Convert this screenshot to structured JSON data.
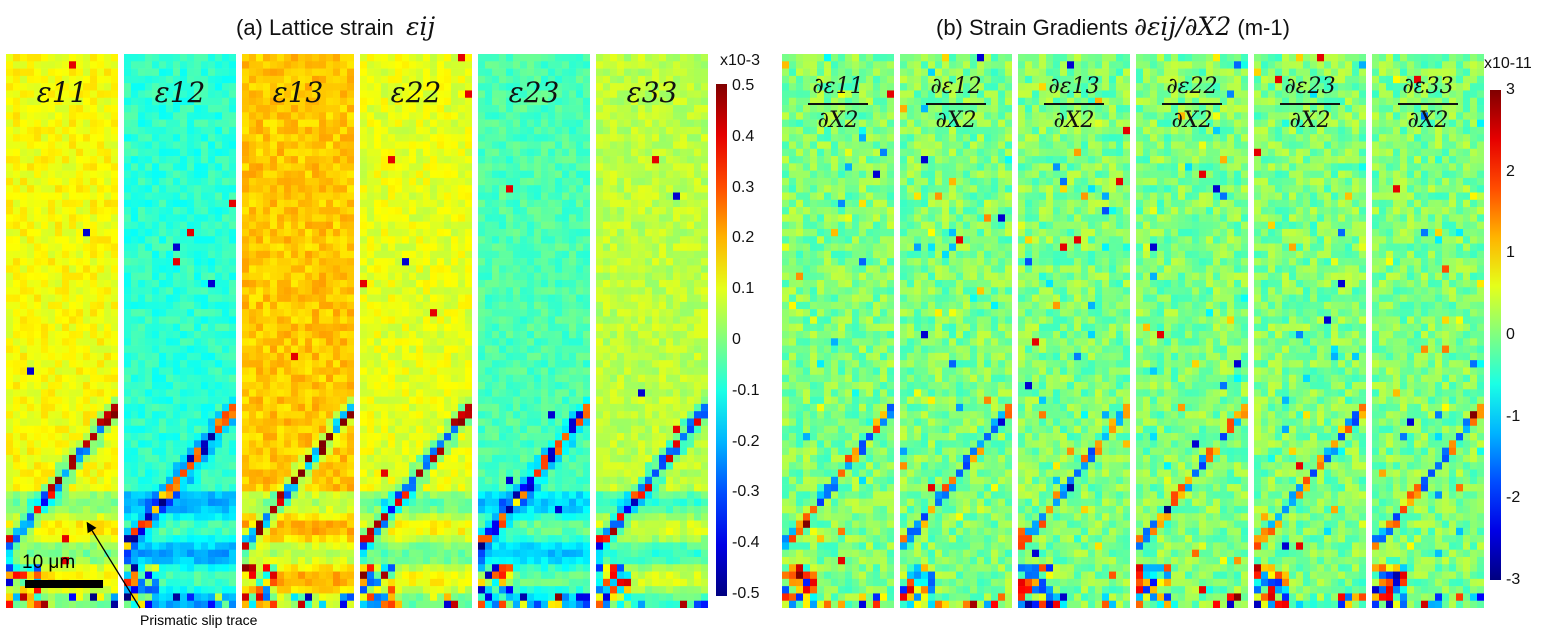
{
  "chart_data": [
    {
      "type": "heatmap",
      "title_prefix": "(a) Lattice strain",
      "title_symbol": "εij",
      "panels": [
        "ε11",
        "ε12",
        "ε13",
        "ε22",
        "ε23",
        "ε33"
      ],
      "colorbar": {
        "multiplier": "x10-3",
        "ticks": [
          "0.5",
          "0.4",
          "0.3",
          "0.2",
          "0.1",
          "0",
          "-0.1",
          "-0.2",
          "-0.3",
          "-0.4",
          "-0.5"
        ],
        "range": [
          -0.5,
          0.5
        ],
        "colormap": "jet"
      },
      "scale_bar": "10 μm",
      "annotation": "Prismatic slip trace"
    },
    {
      "type": "heatmap",
      "title_prefix": "(b) Strain Gradients",
      "title_symbol": "∂εij/∂X2",
      "title_suffix": "(m-1)",
      "panels": [
        {
          "num": "∂ε11",
          "den": "∂X2"
        },
        {
          "num": "∂ε12",
          "den": "∂X2"
        },
        {
          "num": "∂ε13",
          "den": "∂X2"
        },
        {
          "num": "∂ε22",
          "den": "∂X2"
        },
        {
          "num": "∂ε23",
          "den": "∂X2"
        },
        {
          "num": "∂ε33",
          "den": "∂X2"
        }
      ],
      "colorbar": {
        "multiplier": "x10-11",
        "ticks": [
          "3",
          "2",
          "1",
          "0",
          "-1",
          "-2",
          "-3"
        ],
        "range": [
          -3,
          3
        ],
        "colormap": "jet"
      }
    }
  ]
}
